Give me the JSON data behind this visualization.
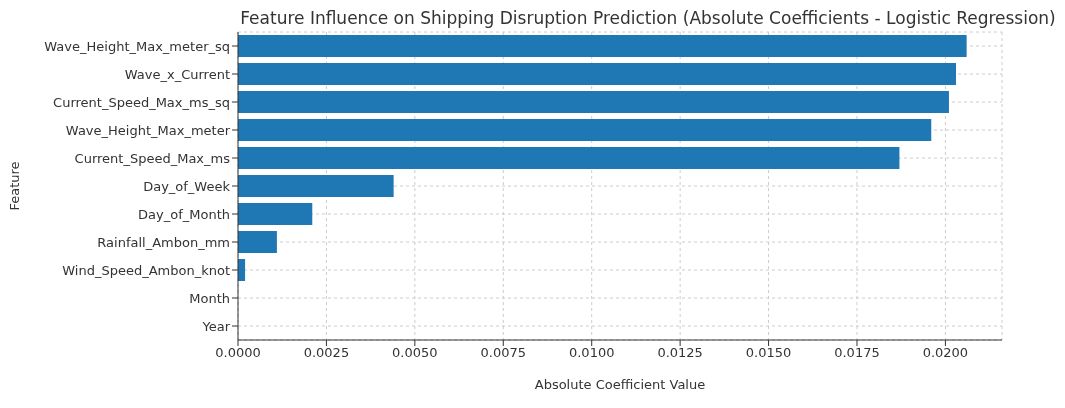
{
  "chart_data": {
    "type": "bar",
    "orientation": "horizontal",
    "title": "Feature Influence on Shipping Disruption Prediction (Absolute Coefficients - Logistic Regression)",
    "xlabel": "Absolute Coefficient Value",
    "ylabel": "Feature",
    "categories": [
      "Wave_Height_Max_meter_sq",
      "Wave_x_Current",
      "Current_Speed_Max_ms_sq",
      "Wave_Height_Max_meter",
      "Current_Speed_Max_ms",
      "Day_of_Week",
      "Day_of_Month",
      "Rainfall_Ambon_mm",
      "Wind_Speed_Ambon_knot",
      "Month",
      "Year"
    ],
    "values": [
      0.0206,
      0.0203,
      0.0201,
      0.0196,
      0.0187,
      0.0044,
      0.0021,
      0.0011,
      0.0002,
      0,
      0
    ],
    "color": "#1f77b4",
    "xlim": [
      0,
      0.0216
    ],
    "xticks": [
      {
        "value": 0,
        "label": "0.0000"
      },
      {
        "value": 0.0025,
        "label": "0.0025"
      },
      {
        "value": 0.005,
        "label": "0.0050"
      },
      {
        "value": 0.0075,
        "label": "0.0075"
      },
      {
        "value": 0.01,
        "label": "0.0100"
      },
      {
        "value": 0.0125,
        "label": "0.0125"
      },
      {
        "value": 0.015,
        "label": "0.0150"
      },
      {
        "value": 0.0175,
        "label": "0.0175"
      },
      {
        "value": 0.02,
        "label": "0.0200"
      }
    ],
    "grid": true
  }
}
